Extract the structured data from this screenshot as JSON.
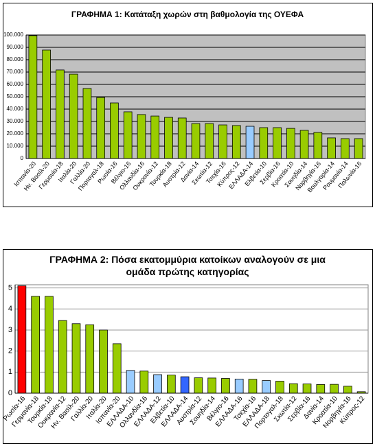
{
  "chart_data": [
    {
      "type": "bar",
      "title": "ΓΡΑΦΗΜΑ 1:  Κατάταξη χωρών στη βαθμολογία της ΟΥΕΦΑ",
      "categories": [
        "Ισπανία-20",
        "Ην. Βασίλ-20",
        "Γερμανία-18",
        "Ιταλία-20",
        "Γαλλία-20",
        "Πορτογαλ-18",
        "Ρωσία-16",
        "Βέλγιο-16",
        "Ολλανδία-16",
        "Ουκρανία-12",
        "Τουρκία-18",
        "Αυστρία-12",
        "Δανία-14",
        "Σκωτία-12",
        "Τσεχία-16",
        "Κύπρος-12",
        "ΕΛΛΑΔΑ-14",
        "Ελβετία-10",
        "Σερβία-16",
        "Κροατία-10",
        "Σουηδία-14",
        "Νορβηγία-16",
        "Βουλγαρία-14",
        "Ρουμανία-14",
        "Πολωνία-16"
      ],
      "values": [
        99500,
        87800,
        71700,
        68300,
        56700,
        49400,
        45000,
        37800,
        35600,
        34400,
        33300,
        32800,
        28300,
        28300,
        27200,
        26700,
        26100,
        25000,
        25000,
        24400,
        22800,
        21100,
        16700,
        16100,
        16100
      ],
      "colors": [
        "#99cc00",
        "#99cc00",
        "#99cc00",
        "#99cc00",
        "#99cc00",
        "#99cc00",
        "#99cc00",
        "#99cc00",
        "#99cc00",
        "#99cc00",
        "#99cc00",
        "#99cc00",
        "#99cc00",
        "#99cc00",
        "#99cc00",
        "#99cc00",
        "#99ccff",
        "#99cc00",
        "#99cc00",
        "#99cc00",
        "#99cc00",
        "#99cc00",
        "#99cc00",
        "#99cc00",
        "#99cc00"
      ],
      "ylim": [
        0,
        100000
      ],
      "yticks": [
        0,
        {
          "value": 10000,
          "label": "10.000"
        },
        {
          "value": 20000,
          "label": "20.000"
        },
        {
          "value": 30000,
          "label": "30.000"
        },
        {
          "value": 40000,
          "label": "40.000"
        },
        {
          "value": 50000,
          "label": "50.000"
        },
        {
          "value": 60000,
          "label": "60.000"
        },
        {
          "value": 70000,
          "label": "70.000"
        },
        {
          "value": 80000,
          "label": "80.000"
        },
        {
          "value": 90000,
          "label": "90.000"
        },
        {
          "value": 100000,
          "label": "100.000"
        }
      ],
      "grid": true,
      "plot_background": "#c0c0c0"
    },
    {
      "type": "bar",
      "title": "ΓΡΑΦΗΜΑ 2: Πόσα εκατομμύρια κατοίκων αναλογούν σε μια ομάδα πρώτης κατηγορίας",
      "categories": [
        "Ρωσία-16",
        "Γερμανία-18",
        "Τουρκία-18",
        "Ουκρανία-12",
        "Ην. Βασίλ-20",
        "Γαλλία-20",
        "Ιταλία-20",
        "Ισπανία-20",
        "ΕΛΛΑΔΑ-10",
        "Ολλανδία-16",
        "ΕΛΛΑΔΑ-12",
        "Ελβετία-10",
        "ΕΛΛΑΔΑ-14",
        "Αυστρία-12",
        "Σουηδία-14",
        "Βέλγιο-16",
        "ΕΛΛΑΔΑ-16",
        "Τσεχία-16",
        "ΕΛΛΑΔΑ-18",
        "Πορτογαλ-18",
        "Σκωτία-12",
        "Σερβία-16",
        "Δανία-14",
        "Κροατία-10",
        "Νορβηγία-16",
        "Κύπρος-12"
      ],
      "values": [
        5.1,
        4.6,
        4.6,
        3.45,
        3.3,
        3.25,
        3.0,
        2.35,
        1.08,
        1.05,
        0.88,
        0.86,
        0.78,
        0.73,
        0.72,
        0.7,
        0.67,
        0.66,
        0.6,
        0.57,
        0.45,
        0.44,
        0.41,
        0.42,
        0.33,
        0.07
      ],
      "colors": [
        "#ff0000",
        "#99cc00",
        "#99cc00",
        "#99cc00",
        "#99cc00",
        "#99cc00",
        "#99cc00",
        "#99cc00",
        "#99ccff",
        "#99cc00",
        "#99ccff",
        "#99cc00",
        "#3366ff",
        "#99cc00",
        "#99cc00",
        "#99cc00",
        "#99ccff",
        "#99cc00",
        "#99ccff",
        "#99cc00",
        "#99cc00",
        "#99cc00",
        "#99cc00",
        "#99cc00",
        "#99cc00",
        "#99cc00"
      ],
      "ylim": [
        0,
        5.15
      ],
      "yticks": [
        0,
        1,
        2,
        3,
        4,
        5
      ],
      "grid": true,
      "plot_background": "#ffffff"
    }
  ]
}
